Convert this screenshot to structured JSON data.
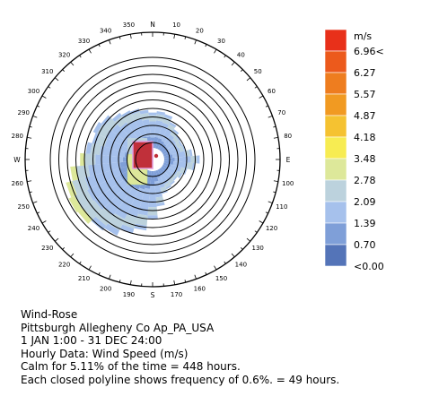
{
  "chart_data": {
    "type": "wind-rose",
    "legend": {
      "unit": "m/s",
      "labels": [
        "6.96<",
        "6.27",
        "5.57",
        "4.87",
        "4.18",
        "3.48",
        "2.78",
        "2.09",
        "1.39",
        "0.70",
        "<0.00"
      ],
      "colors": [
        "#e8301a",
        "#ec5a1c",
        "#ee7d1f",
        "#f19a22",
        "#f5c231",
        "#f7ec52",
        "#dde89a",
        "#bcd2dd",
        "#a6c1ec",
        "#7f9fd8",
        "#5474b8"
      ]
    },
    "compass": {
      "north": "N",
      "east": "E",
      "south": "S",
      "west": "W"
    },
    "degree_labels": [
      "10",
      "20",
      "30",
      "40",
      "50",
      "60",
      "70",
      "80",
      "100",
      "110",
      "120",
      "130",
      "140",
      "150",
      "160",
      "170",
      "190",
      "200",
      "210",
      "220",
      "230",
      "240",
      "250",
      "260",
      "280",
      "290",
      "300",
      "310",
      "320",
      "330",
      "340",
      "350"
    ],
    "ring_frequency_step_percent": 0.6,
    "ring_count": 11,
    "directions_deg": [
      0,
      10,
      20,
      30,
      40,
      50,
      60,
      70,
      80,
      90,
      100,
      110,
      120,
      130,
      140,
      150,
      160,
      170,
      180,
      190,
      200,
      210,
      220,
      230,
      240,
      250,
      260,
      270,
      280,
      290,
      300,
      310,
      320,
      330,
      340,
      350
    ],
    "frequency_percent": [
      2.5,
      2.6,
      2.5,
      2.1,
      1.8,
      1.6,
      1.5,
      1.6,
      2.0,
      2.5,
      2.2,
      1.7,
      1.5,
      1.3,
      1.4,
      1.5,
      1.7,
      2.5,
      3.4,
      4.2,
      4.6,
      5.1,
      5.3,
      5.6,
      5.7,
      5.5,
      5.0,
      4.3,
      3.9,
      3.6,
      3.8,
      3.6,
      3.2,
      3.0,
      2.9,
      2.7
    ]
  },
  "caption": {
    "title": "Wind-Rose",
    "station": "Pittsburgh Allegheny Co Ap_PA_USA",
    "period": "1 JAN 1:00 - 31 DEC 24:00",
    "data": "Hourly Data: Wind Speed (m/s)",
    "calm": "Calm for 5.11% of the time = 448 hours.",
    "rings": "Each closed polyline shows frequency of 0.6%. = 49 hours."
  }
}
